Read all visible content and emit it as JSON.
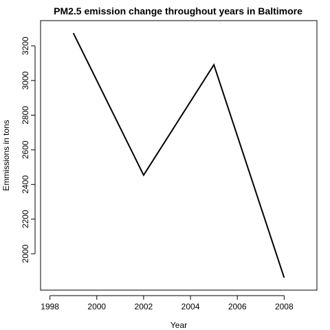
{
  "chart_data": {
    "type": "line",
    "title": "PM2.5 emission change throughout years in Baltimore",
    "xlabel": "Year",
    "ylabel": "Emmissions in tons",
    "x": [
      1999,
      2002,
      2005,
      2008
    ],
    "series": [
      {
        "values": [
          3274,
          2454,
          3091,
          1862
        ]
      }
    ],
    "xlim": [
      1997.6,
      2009.4
    ],
    "ylim": [
      1790,
      3346
    ],
    "xticks": [
      1998,
      2000,
      2002,
      2004,
      2006,
      2008
    ],
    "yticks": [
      2000,
      2200,
      2400,
      2600,
      2800,
      3000,
      3200
    ],
    "xtick_labels": [
      "1998",
      "2000",
      "2002",
      "2004",
      "2006",
      "2008"
    ],
    "ytick_labels": [
      "2000",
      "2200",
      "2400",
      "2600",
      "2800",
      "3000",
      "3200"
    ],
    "grid": false,
    "line_color": "#000000"
  }
}
